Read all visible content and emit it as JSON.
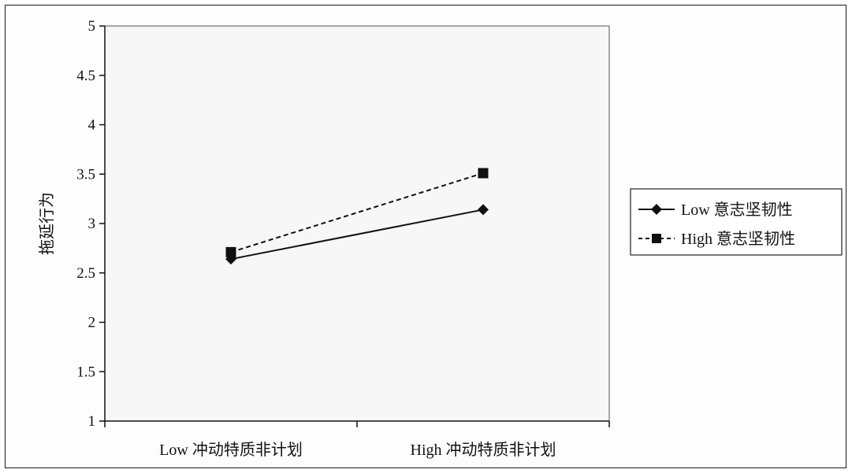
{
  "chart_data": {
    "type": "line",
    "title": "",
    "xlabel": "",
    "ylabel": "拖延行为",
    "categories": [
      "Low 冲动特质非计划",
      "High 冲动特质非计划"
    ],
    "ylim": [
      1,
      5
    ],
    "yticks": [
      1,
      1.5,
      2,
      2.5,
      3,
      3.5,
      4,
      4.5,
      5
    ],
    "grid": false,
    "legend_position": "right",
    "series": [
      {
        "name": "Low 意志坚韧性",
        "values": [
          2.64,
          3.14
        ],
        "marker": "diamond",
        "line_style": "solid",
        "color": "#111111"
      },
      {
        "name": "High 意志坚韧性",
        "values": [
          2.71,
          3.51
        ],
        "marker": "square",
        "line_style": "dashed",
        "color": "#111111"
      }
    ]
  }
}
